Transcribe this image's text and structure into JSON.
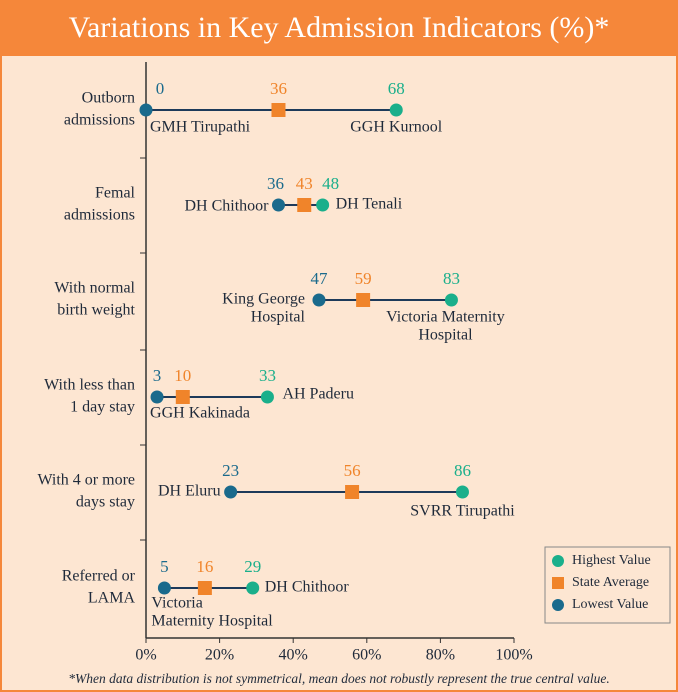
{
  "chart_data": {
    "type": "dumbbell",
    "title": "Variations in Key Admission Indicators (%)*",
    "footnote": "*When data distribution is not symmetrical, mean does not robustly represent the true central value.",
    "categories": [
      [
        "Outborn",
        "admissions"
      ],
      [
        "Femal",
        "admissions"
      ],
      [
        "With normal",
        "birth weight"
      ],
      [
        "With less than",
        "1 day stay"
      ],
      [
        "With 4 or more",
        "days stay"
      ],
      [
        "Referred or",
        "LAMA"
      ]
    ],
    "series": [
      {
        "name": "Highest Value",
        "color": "#1aaf8b",
        "values": [
          68,
          48,
          83,
          33,
          86,
          29
        ],
        "point_labels": [
          [
            "GGH Kurnool"
          ],
          [
            "DH Tenali"
          ],
          [
            "Victoria Maternity",
            "Hospital"
          ],
          [
            "AH Paderu"
          ],
          [
            "SVRR Tirupathi"
          ],
          [
            "DH Chithoor"
          ]
        ]
      },
      {
        "name": "State Average",
        "color": "#f0842a",
        "values": [
          36,
          43,
          59,
          10,
          56,
          16
        ]
      },
      {
        "name": "Lowest Value",
        "color": "#1a6a8c",
        "values": [
          0,
          36,
          47,
          3,
          23,
          5
        ],
        "point_labels": [
          [
            "GMH Tirupathi"
          ],
          [
            "DH Chithoor"
          ],
          [
            "King George",
            "Hospital"
          ],
          [
            "GGH Kakinada"
          ],
          [
            "DH Eluru"
          ],
          [
            "Victoria",
            "Maternity Hospital"
          ]
        ]
      }
    ],
    "xlim": [
      0,
      100
    ],
    "xticks": [
      {
        "value": 0,
        "label": "0%"
      },
      {
        "value": 20,
        "label": "20%"
      },
      {
        "value": 40,
        "label": "40%"
      },
      {
        "value": 60,
        "label": "60%"
      },
      {
        "value": 80,
        "label": "80%"
      },
      {
        "value": 100,
        "label": "100%"
      }
    ],
    "line_color": "#1d3a5a",
    "legend": "lower right"
  }
}
